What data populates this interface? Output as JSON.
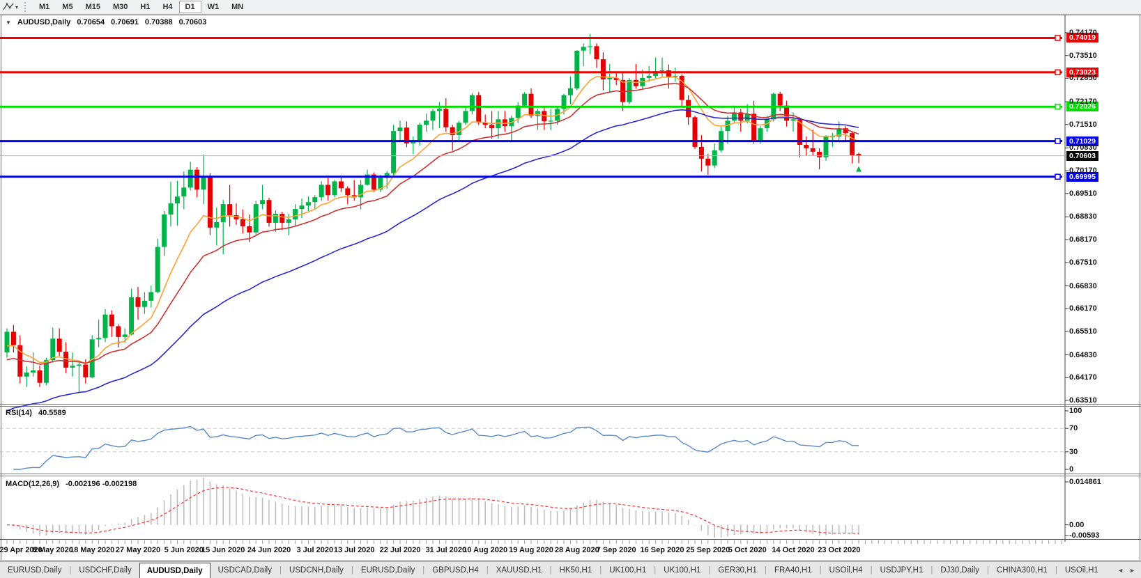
{
  "toolbar": {
    "tool_icon": "drawing-tool-icon",
    "timeframes": [
      "M1",
      "M5",
      "M15",
      "M30",
      "H1",
      "H4",
      "D1",
      "W1",
      "MN"
    ],
    "active_timeframe": "D1"
  },
  "chart": {
    "symbol_title": "AUDUSD,Daily",
    "open": "0.70654",
    "high": "0.70691",
    "low": "0.70388",
    "close": "0.70603"
  },
  "price_axis_ticks": [
    {
      "label": "0.74170",
      "value": 0.7417
    },
    {
      "label": "0.73510",
      "value": 0.7351
    },
    {
      "label": "0.72850",
      "value": 0.7285
    },
    {
      "label": "0.72170",
      "value": 0.7217
    },
    {
      "label": "0.71510",
      "value": 0.7151
    },
    {
      "label": "0.70830",
      "value": 0.7083
    },
    {
      "label": "0.70170",
      "value": 0.7017
    },
    {
      "label": "0.69510",
      "value": 0.6951
    },
    {
      "label": "0.68830",
      "value": 0.6883
    },
    {
      "label": "0.68170",
      "value": 0.6817
    },
    {
      "label": "0.67510",
      "value": 0.6751
    },
    {
      "label": "0.66830",
      "value": 0.6683
    },
    {
      "label": "0.66170",
      "value": 0.6617
    },
    {
      "label": "0.65510",
      "value": 0.6551
    },
    {
      "label": "0.64830",
      "value": 0.6483
    },
    {
      "label": "0.64170",
      "value": 0.6417
    },
    {
      "label": "0.63510",
      "value": 0.6351
    }
  ],
  "horizontal_lines": [
    {
      "price": 0.74019,
      "label": "0.74019",
      "color": "#f00000",
      "width": 3
    },
    {
      "price": 0.73023,
      "label": "0.73023",
      "color": "#f00000",
      "width": 3
    },
    {
      "price": 0.72026,
      "label": "0.72026",
      "color": "#00dc00",
      "width": 3
    },
    {
      "price": 0.71029,
      "label": "0.71029",
      "color": "#0000e6",
      "width": 3
    },
    {
      "price": 0.69995,
      "label": "0.69995",
      "color": "#0000e6",
      "width": 3
    }
  ],
  "current_price": {
    "price": 0.70603,
    "label": "0.70603",
    "line_color": "#b4b4b4",
    "tag_color": "#000000"
  },
  "date_axis": [
    [
      0,
      "29 Apr 2020"
    ],
    [
      7,
      "8 May 2020"
    ],
    [
      13,
      "18 May 2020"
    ],
    [
      20,
      "27 May 2020"
    ],
    [
      27,
      "5 Jun 2020"
    ],
    [
      33,
      "15 Jun 2020"
    ],
    [
      40,
      "24 Jun 2020"
    ],
    [
      47,
      "3 Jul 2020"
    ],
    [
      53,
      "13 Jul 2020"
    ],
    [
      60,
      "22 Jul 2020"
    ],
    [
      67,
      "31 Jul 2020"
    ],
    [
      73,
      "10 Aug 2020"
    ],
    [
      80,
      "19 Aug 2020"
    ],
    [
      87,
      "28 Aug 2020"
    ],
    [
      93,
      "7 Sep 2020"
    ],
    [
      100,
      "16 Sep 2020"
    ],
    [
      107,
      "25 Sep 2020"
    ],
    [
      113,
      "5 Oct 2020"
    ],
    [
      120,
      "14 Oct 2020"
    ],
    [
      127,
      "23 Oct 2020"
    ]
  ],
  "rsi_pane": {
    "name": "RSI(14)",
    "value": "40.5589",
    "axis_labels": [
      {
        "label": "100",
        "level": 100
      },
      {
        "label": "70",
        "level": 70
      },
      {
        "label": "30",
        "level": 30
      },
      {
        "label": "0",
        "level": 0
      }
    ],
    "dashed_levels": [
      70,
      30
    ],
    "line_color": "#5a8ac6"
  },
  "macd_pane": {
    "name": "MACD(12,26,9)",
    "values": "-0.002196 -0.002198",
    "axis_max": "0.014861",
    "axis_zero": "0.00",
    "axis_min": "-0.00593",
    "hist_color": "#bfbfbf",
    "signal_color": "#ff3333"
  },
  "tabs": {
    "items": [
      "EURUSD,Daily",
      "USDCHF,Daily",
      "AUDUSD,Daily",
      "USDCAD,Daily",
      "USDCNH,Daily",
      "EURUSD,Daily",
      "GBPUSD,H4",
      "XAUUSD,H1",
      "HK50,H1",
      "UK100,H1",
      "UK100,H1",
      "GER30,H1",
      "FRA40,H1",
      "USOil,H4",
      "USDJPY,H1",
      "DJ30,Daily",
      "CHINA300,H1",
      "USOil,H1"
    ],
    "active_index": 2,
    "scroll_left": "◄",
    "scroll_right": "►"
  },
  "chart_data": {
    "type": "candlestick",
    "symbol": "AUDUSD",
    "timeframe": "Daily",
    "title": "AUDUSD,Daily",
    "up_color": "#00b44a",
    "down_color": "#e60000",
    "ylim": [
      0.63449,
      0.74271
    ],
    "candles": [
      [
        0.649,
        0.656,
        0.6475,
        0.655
      ],
      [
        0.655,
        0.657,
        0.649,
        0.6511
      ],
      [
        0.6511,
        0.654,
        0.64,
        0.642
      ],
      [
        0.642,
        0.645,
        0.639,
        0.6432
      ],
      [
        0.6432,
        0.649,
        0.642,
        0.6438
      ],
      [
        0.6438,
        0.6452,
        0.639,
        0.6402
      ],
      [
        0.6402,
        0.6475,
        0.6395,
        0.6468
      ],
      [
        0.6468,
        0.6562,
        0.646,
        0.653
      ],
      [
        0.653,
        0.656,
        0.648,
        0.6492
      ],
      [
        0.6492,
        0.652,
        0.643,
        0.6446
      ],
      [
        0.6446,
        0.649,
        0.642,
        0.6452
      ],
      [
        0.6452,
        0.6462,
        0.6372,
        0.6455
      ],
      [
        0.6455,
        0.647,
        0.64,
        0.6418
      ],
      [
        0.6418,
        0.654,
        0.6415,
        0.6528
      ],
      [
        0.6528,
        0.6585,
        0.6505,
        0.6532
      ],
      [
        0.6532,
        0.6616,
        0.652,
        0.66
      ],
      [
        0.66,
        0.6612,
        0.6535,
        0.6566
      ],
      [
        0.6566,
        0.6572,
        0.6505,
        0.6535
      ],
      [
        0.6535,
        0.656,
        0.6518,
        0.6542
      ],
      [
        0.6542,
        0.6675,
        0.654,
        0.665
      ],
      [
        0.665,
        0.668,
        0.6585,
        0.6622
      ],
      [
        0.6622,
        0.6665,
        0.6602,
        0.664
      ],
      [
        0.664,
        0.6684,
        0.662,
        0.6665
      ],
      [
        0.6665,
        0.682,
        0.6662,
        0.6796
      ],
      [
        0.6796,
        0.69,
        0.677,
        0.689
      ],
      [
        0.689,
        0.6985,
        0.6855,
        0.6922
      ],
      [
        0.6922,
        0.6988,
        0.6858,
        0.6942
      ],
      [
        0.6942,
        0.7015,
        0.6905,
        0.6968
      ],
      [
        0.6968,
        0.7043,
        0.696,
        0.702
      ],
      [
        0.702,
        0.7027,
        0.694,
        0.6962
      ],
      [
        0.6962,
        0.7064,
        0.692,
        0.7002
      ],
      [
        0.7002,
        0.701,
        0.683,
        0.6852
      ],
      [
        0.6852,
        0.691,
        0.68,
        0.6868
      ],
      [
        0.6868,
        0.6932,
        0.6775,
        0.692
      ],
      [
        0.692,
        0.6976,
        0.6855,
        0.6888
      ],
      [
        0.6888,
        0.6922,
        0.686,
        0.6876
      ],
      [
        0.6876,
        0.6905,
        0.6835,
        0.6856
      ],
      [
        0.6856,
        0.689,
        0.681,
        0.6838
      ],
      [
        0.6838,
        0.693,
        0.6832,
        0.692
      ],
      [
        0.692,
        0.6976,
        0.6905,
        0.6932
      ],
      [
        0.6932,
        0.6938,
        0.6855,
        0.6866
      ],
      [
        0.6866,
        0.6902,
        0.684,
        0.6892
      ],
      [
        0.6892,
        0.6898,
        0.6845,
        0.6866
      ],
      [
        0.6866,
        0.6892,
        0.683,
        0.6876
      ],
      [
        0.6876,
        0.692,
        0.6856,
        0.6906
      ],
      [
        0.6906,
        0.6936,
        0.688,
        0.6916
      ],
      [
        0.6916,
        0.6942,
        0.69,
        0.6926
      ],
      [
        0.6926,
        0.6946,
        0.6905,
        0.694
      ],
      [
        0.694,
        0.6986,
        0.693,
        0.6976
      ],
      [
        0.6976,
        0.6996,
        0.693,
        0.6946
      ],
      [
        0.6946,
        0.699,
        0.694,
        0.6986
      ],
      [
        0.6986,
        0.7002,
        0.6955,
        0.6966
      ],
      [
        0.6966,
        0.6972,
        0.692,
        0.6946
      ],
      [
        0.6946,
        0.699,
        0.693,
        0.694
      ],
      [
        0.694,
        0.699,
        0.6905,
        0.6976
      ],
      [
        0.6976,
        0.702,
        0.6974,
        0.7006
      ],
      [
        0.7006,
        0.7012,
        0.6955,
        0.6962
      ],
      [
        0.6962,
        0.7005,
        0.6955,
        0.6996
      ],
      [
        0.6996,
        0.7016,
        0.6965,
        0.701
      ],
      [
        0.701,
        0.715,
        0.7,
        0.7132
      ],
      [
        0.7132,
        0.7162,
        0.71,
        0.7142
      ],
      [
        0.7142,
        0.716,
        0.7085,
        0.7096
      ],
      [
        0.7096,
        0.7116,
        0.7065,
        0.7102
      ],
      [
        0.7102,
        0.7156,
        0.709,
        0.715
      ],
      [
        0.715,
        0.7182,
        0.713,
        0.7162
      ],
      [
        0.7162,
        0.7196,
        0.7135,
        0.719
      ],
      [
        0.719,
        0.7216,
        0.714,
        0.7196
      ],
      [
        0.7196,
        0.7227,
        0.713,
        0.7143
      ],
      [
        0.7143,
        0.715,
        0.7075,
        0.712
      ],
      [
        0.712,
        0.7162,
        0.71,
        0.7156
      ],
      [
        0.7156,
        0.72,
        0.715,
        0.719
      ],
      [
        0.719,
        0.7242,
        0.718,
        0.7236
      ],
      [
        0.7236,
        0.7245,
        0.715,
        0.7156
      ],
      [
        0.7156,
        0.718,
        0.714,
        0.715
      ],
      [
        0.715,
        0.719,
        0.711,
        0.714
      ],
      [
        0.714,
        0.719,
        0.711,
        0.7166
      ],
      [
        0.7166,
        0.719,
        0.713,
        0.7146
      ],
      [
        0.7146,
        0.7176,
        0.7105,
        0.717
      ],
      [
        0.717,
        0.7216,
        0.7155,
        0.7206
      ],
      [
        0.7206,
        0.7245,
        0.72,
        0.724
      ],
      [
        0.724,
        0.7256,
        0.717,
        0.7176
      ],
      [
        0.7176,
        0.7196,
        0.7135,
        0.719
      ],
      [
        0.719,
        0.72,
        0.7135,
        0.716
      ],
      [
        0.716,
        0.7196,
        0.7135,
        0.7162
      ],
      [
        0.7162,
        0.7205,
        0.715,
        0.7196
      ],
      [
        0.7196,
        0.724,
        0.718,
        0.7236
      ],
      [
        0.7236,
        0.729,
        0.721,
        0.7256
      ],
      [
        0.7256,
        0.7366,
        0.725,
        0.7365
      ],
      [
        0.7365,
        0.7386,
        0.732,
        0.7376
      ],
      [
        0.7376,
        0.7414,
        0.7355,
        0.7378
      ],
      [
        0.7378,
        0.7386,
        0.7315,
        0.734
      ],
      [
        0.734,
        0.736,
        0.725,
        0.7282
      ],
      [
        0.7282,
        0.7326,
        0.7245,
        0.7286
      ],
      [
        0.7286,
        0.73,
        0.7265,
        0.728
      ],
      [
        0.728,
        0.73,
        0.719,
        0.7216
      ],
      [
        0.7216,
        0.7286,
        0.721,
        0.728
      ],
      [
        0.728,
        0.7326,
        0.7255,
        0.7262
      ],
      [
        0.7262,
        0.731,
        0.7255,
        0.7286
      ],
      [
        0.7286,
        0.732,
        0.7275,
        0.7292
      ],
      [
        0.7292,
        0.7345,
        0.7285,
        0.7306
      ],
      [
        0.7306,
        0.7345,
        0.729,
        0.7308
      ],
      [
        0.7308,
        0.7325,
        0.7255,
        0.729
      ],
      [
        0.729,
        0.7316,
        0.7275,
        0.7292
      ],
      [
        0.7292,
        0.7296,
        0.72,
        0.7222
      ],
      [
        0.7222,
        0.7236,
        0.715,
        0.7172
      ],
      [
        0.7172,
        0.7176,
        0.708,
        0.7086
      ],
      [
        0.7086,
        0.712,
        0.7015,
        0.7052
      ],
      [
        0.7052,
        0.7066,
        0.7005,
        0.7032
      ],
      [
        0.7032,
        0.7096,
        0.7025,
        0.7076
      ],
      [
        0.7076,
        0.7146,
        0.707,
        0.7132
      ],
      [
        0.7132,
        0.7176,
        0.7095,
        0.7162
      ],
      [
        0.7162,
        0.7206,
        0.7155,
        0.7186
      ],
      [
        0.7186,
        0.7196,
        0.713,
        0.7162
      ],
      [
        0.7162,
        0.721,
        0.7155,
        0.7182
      ],
      [
        0.7182,
        0.722,
        0.7095,
        0.7106
      ],
      [
        0.7106,
        0.7146,
        0.7095,
        0.714
      ],
      [
        0.714,
        0.7176,
        0.713,
        0.7166
      ],
      [
        0.7166,
        0.7243,
        0.716,
        0.724
      ],
      [
        0.724,
        0.7246,
        0.719,
        0.7206
      ],
      [
        0.7206,
        0.722,
        0.7145,
        0.7162
      ],
      [
        0.7162,
        0.7186,
        0.713,
        0.7166
      ],
      [
        0.7166,
        0.7172,
        0.7055,
        0.7092
      ],
      [
        0.7092,
        0.7116,
        0.706,
        0.7082
      ],
      [
        0.7082,
        0.7136,
        0.706,
        0.7072
      ],
      [
        0.7072,
        0.7082,
        0.7021,
        0.7056
      ],
      [
        0.7056,
        0.712,
        0.7046,
        0.7115
      ],
      [
        0.7115,
        0.7126,
        0.7086,
        0.7116
      ],
      [
        0.7116,
        0.716,
        0.71,
        0.714
      ],
      [
        0.714,
        0.7146,
        0.7103,
        0.7126
      ],
      [
        0.7126,
        0.713,
        0.7038,
        0.7062
      ],
      [
        0.70654,
        0.70691,
        0.70388,
        0.70603
      ]
    ],
    "moving_averages": [
      {
        "name": "fast-ma",
        "period": 10,
        "seed": 0.65,
        "color": "#ffa133"
      },
      {
        "name": "mid-ma",
        "period": 20,
        "seed": 0.646,
        "color": "#cc3333"
      },
      {
        "name": "slow-ma",
        "period": 45,
        "seed": 0.631,
        "color": "#2929cc"
      }
    ],
    "rsi_period": 14,
    "macd": {
      "fast": 12,
      "slow": 26,
      "signal": 9
    },
    "marker": {
      "index": 130,
      "price": 0.7022,
      "type": "up-arrow",
      "color": "#00b44a"
    }
  }
}
